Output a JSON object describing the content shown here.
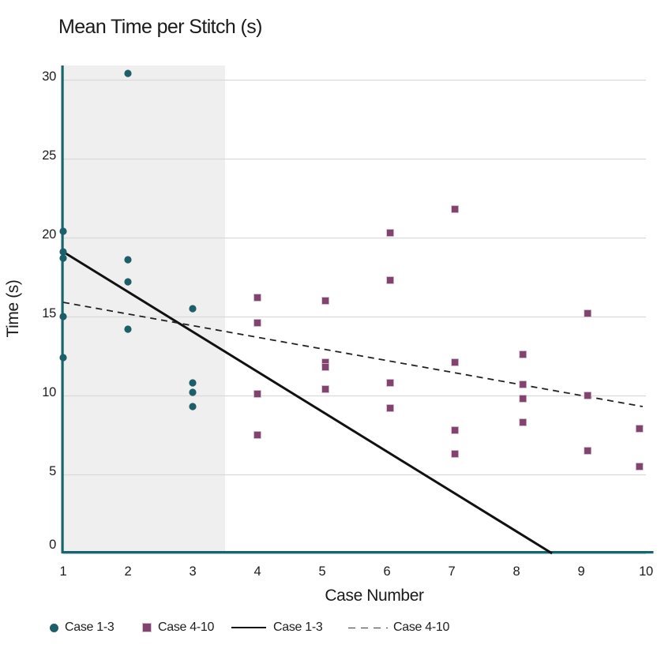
{
  "title": "Mean Time per Stitch (s)",
  "chart_data": {
    "type": "scatter",
    "title": "Mean Time per Stitch (s)",
    "xlabel": "Case Number",
    "ylabel": "Time (s)",
    "xlim": [
      1,
      10
    ],
    "ylim": [
      0,
      30
    ],
    "x_ticks": [
      1,
      2,
      3,
      4,
      5,
      6,
      7,
      8,
      9,
      10
    ],
    "y_ticks": [
      0,
      5,
      10,
      15,
      20,
      25,
      30
    ],
    "grid": "horizontal",
    "grid_color": "#d9d9d9",
    "axis_color": "#15666f",
    "shaded_region": {
      "x_start": 1,
      "x_end": 3.5,
      "color": "#efefef"
    },
    "series": [
      {
        "name": "Case 1-3",
        "marker": "circle",
        "color": "#1d5f68",
        "points": [
          {
            "x": 1,
            "y": 20.4
          },
          {
            "x": 1,
            "y": 19.1
          },
          {
            "x": 1,
            "y": 18.7
          },
          {
            "x": 1,
            "y": 15.0
          },
          {
            "x": 1,
            "y": 12.4
          },
          {
            "x": 2,
            "y": 30.4
          },
          {
            "x": 2,
            "y": 18.6
          },
          {
            "x": 2,
            "y": 17.2
          },
          {
            "x": 2,
            "y": 14.2
          },
          {
            "x": 3,
            "y": 15.5
          },
          {
            "x": 3,
            "y": 10.8
          },
          {
            "x": 3,
            "y": 10.2
          },
          {
            "x": 3,
            "y": 9.3
          }
        ]
      },
      {
        "name": "Case 4-10",
        "marker": "square",
        "color": "#81446f",
        "points": [
          {
            "x": 4,
            "y": 16.2
          },
          {
            "x": 4,
            "y": 14.6
          },
          {
            "x": 4,
            "y": 10.1
          },
          {
            "x": 4,
            "y": 7.5
          },
          {
            "x": 5.05,
            "y": 16.0
          },
          {
            "x": 5.05,
            "y": 12.1
          },
          {
            "x": 5.05,
            "y": 11.8
          },
          {
            "x": 5.05,
            "y": 10.4
          },
          {
            "x": 6.05,
            "y": 20.3
          },
          {
            "x": 6.05,
            "y": 17.3
          },
          {
            "x": 6.05,
            "y": 10.8
          },
          {
            "x": 6.05,
            "y": 9.2
          },
          {
            "x": 7.05,
            "y": 21.8
          },
          {
            "x": 7.05,
            "y": 12.1
          },
          {
            "x": 7.05,
            "y": 7.8
          },
          {
            "x": 7.05,
            "y": 6.3
          },
          {
            "x": 8.1,
            "y": 12.6
          },
          {
            "x": 8.1,
            "y": 10.7
          },
          {
            "x": 8.1,
            "y": 9.8
          },
          {
            "x": 8.1,
            "y": 8.3
          },
          {
            "x": 9.1,
            "y": 15.2
          },
          {
            "x": 9.1,
            "y": 10.0
          },
          {
            "x": 9.1,
            "y": 6.5
          },
          {
            "x": 9.9,
            "y": 7.9
          },
          {
            "x": 9.9,
            "y": 5.5
          }
        ]
      }
    ],
    "trendlines": [
      {
        "name": "Case 1-3",
        "style": "solid",
        "color": "#111111",
        "width": 3,
        "from": {
          "x": 1,
          "y": 19.1
        },
        "to": {
          "x": 8.55,
          "y": 0
        }
      },
      {
        "name": "Case 4-10",
        "style": "dashed",
        "color": "#222222",
        "width": 1.8,
        "from": {
          "x": 1,
          "y": 15.9
        },
        "to": {
          "x": 9.95,
          "y": 9.3
        }
      }
    ],
    "legend": {
      "position": "bottom",
      "entries": [
        {
          "label": "Case 1-3",
          "marker": "circle",
          "color": "#1d5f68"
        },
        {
          "label": "Case 4-10",
          "marker": "square",
          "color": "#81446f"
        },
        {
          "label": "Case 1-3",
          "marker": "solid-line",
          "color": "#111111"
        },
        {
          "label": "Case 4-10",
          "marker": "dashed-line",
          "color": "#3a3a3a"
        }
      ]
    }
  }
}
